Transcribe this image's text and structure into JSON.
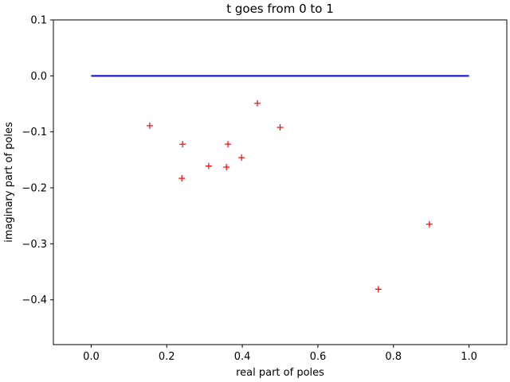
{
  "chart_data": {
    "type": "scatter",
    "title": "t goes from 0 to 1",
    "xlabel": "real part of poles",
    "ylabel": "imaginary part of poles",
    "xlim": [
      -0.1,
      1.1
    ],
    "ylim": [
      -0.48,
      0.1
    ],
    "xticks": [
      0.0,
      0.2,
      0.4,
      0.6,
      0.8,
      1.0
    ],
    "xtick_labels": [
      "0.0",
      "0.2",
      "0.4",
      "0.6",
      "0.8",
      "1.0"
    ],
    "yticks": [
      0.1,
      0.0,
      -0.1,
      -0.2,
      -0.3,
      -0.4
    ],
    "ytick_labels": [
      "0.1",
      "0.0",
      "−0.1",
      "−0.2",
      "−0.3",
      "−0.4"
    ],
    "grid": false,
    "series": [
      {
        "kind": "line",
        "color": "#0000ff",
        "x": [
          0.0,
          1.0
        ],
        "y": [
          0.0,
          0.0
        ]
      },
      {
        "kind": "scatter",
        "marker": "+",
        "color": "#ff0000",
        "x": [
          0.155,
          0.242,
          0.24,
          0.311,
          0.358,
          0.362,
          0.398,
          0.44,
          0.5,
          0.76,
          0.895
        ],
        "y": [
          -0.089,
          -0.122,
          -0.183,
          -0.161,
          -0.163,
          -0.122,
          -0.146,
          -0.049,
          -0.092,
          -0.381,
          -0.265
        ]
      }
    ]
  }
}
